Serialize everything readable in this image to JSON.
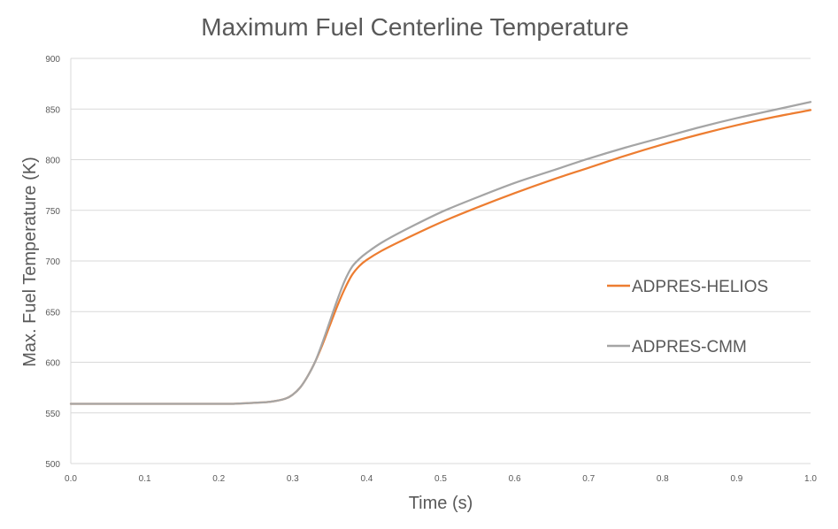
{
  "chart_data": {
    "type": "line",
    "title": "Maximum Fuel Centerline Temperature",
    "xlabel": "Time (s)",
    "ylabel": "Max. Fuel Temperature (K)",
    "xlim": [
      0.0,
      1.0
    ],
    "ylim": [
      500,
      900
    ],
    "x_ticks": [
      "0.0",
      "0.1",
      "0.2",
      "0.3",
      "0.4",
      "0.5",
      "0.6",
      "0.7",
      "0.8",
      "0.9",
      "1.0"
    ],
    "y_ticks": [
      "500",
      "550",
      "600",
      "650",
      "700",
      "750",
      "800",
      "850",
      "900"
    ],
    "grid": "horizontal",
    "legend_position": "right",
    "series": [
      {
        "name": "ADPRES-HELIOS",
        "color": "#ED7D31",
        "x": [
          0.0,
          0.05,
          0.1,
          0.15,
          0.2,
          0.22,
          0.25,
          0.27,
          0.29,
          0.3,
          0.31,
          0.32,
          0.33,
          0.34,
          0.35,
          0.36,
          0.37,
          0.38,
          0.39,
          0.4,
          0.42,
          0.45,
          0.5,
          0.55,
          0.6,
          0.65,
          0.7,
          0.75,
          0.8,
          0.85,
          0.9,
          0.95,
          1.0
        ],
        "y": [
          559,
          559,
          559,
          559,
          559,
          559,
          560,
          561,
          564,
          568,
          575,
          586,
          600,
          617,
          636,
          655,
          672,
          686,
          695,
          701,
          710,
          721,
          738,
          753,
          767,
          780,
          792,
          804,
          815,
          825,
          834,
          842,
          849
        ]
      },
      {
        "name": "ADPRES-CMM",
        "color": "#A5A5A5",
        "x": [
          0.0,
          0.05,
          0.1,
          0.15,
          0.2,
          0.22,
          0.25,
          0.27,
          0.29,
          0.3,
          0.31,
          0.32,
          0.33,
          0.34,
          0.35,
          0.36,
          0.37,
          0.38,
          0.39,
          0.4,
          0.42,
          0.45,
          0.5,
          0.55,
          0.6,
          0.65,
          0.7,
          0.75,
          0.8,
          0.85,
          0.9,
          0.95,
          1.0
        ],
        "y": [
          559,
          559,
          559,
          559,
          559,
          559,
          560,
          561,
          564,
          568,
          575,
          586,
          600,
          619,
          640,
          661,
          680,
          694,
          702,
          708,
          718,
          730,
          748,
          763,
          777,
          789,
          801,
          812,
          822,
          832,
          841,
          849,
          857
        ]
      }
    ]
  }
}
